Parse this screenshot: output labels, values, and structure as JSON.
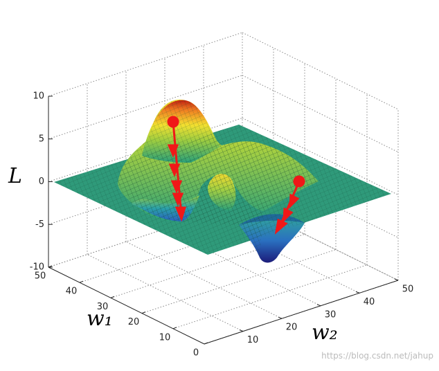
{
  "chart_data": {
    "type": "surface3d",
    "zlabel": "L",
    "ylabel": "w₁",
    "xlabel": "w₂",
    "xlim": [
      0,
      50
    ],
    "xticks": [
      10,
      20,
      30,
      40,
      50
    ],
    "ylim": [
      0,
      50
    ],
    "yticks": [
      0,
      10,
      20,
      30,
      40,
      50
    ],
    "zlim": [
      -10,
      10
    ],
    "zticks": [
      -10,
      -5,
      0,
      5,
      10
    ],
    "grid": true,
    "watermark": "https://blog.csdn.net/jahup"
  }
}
